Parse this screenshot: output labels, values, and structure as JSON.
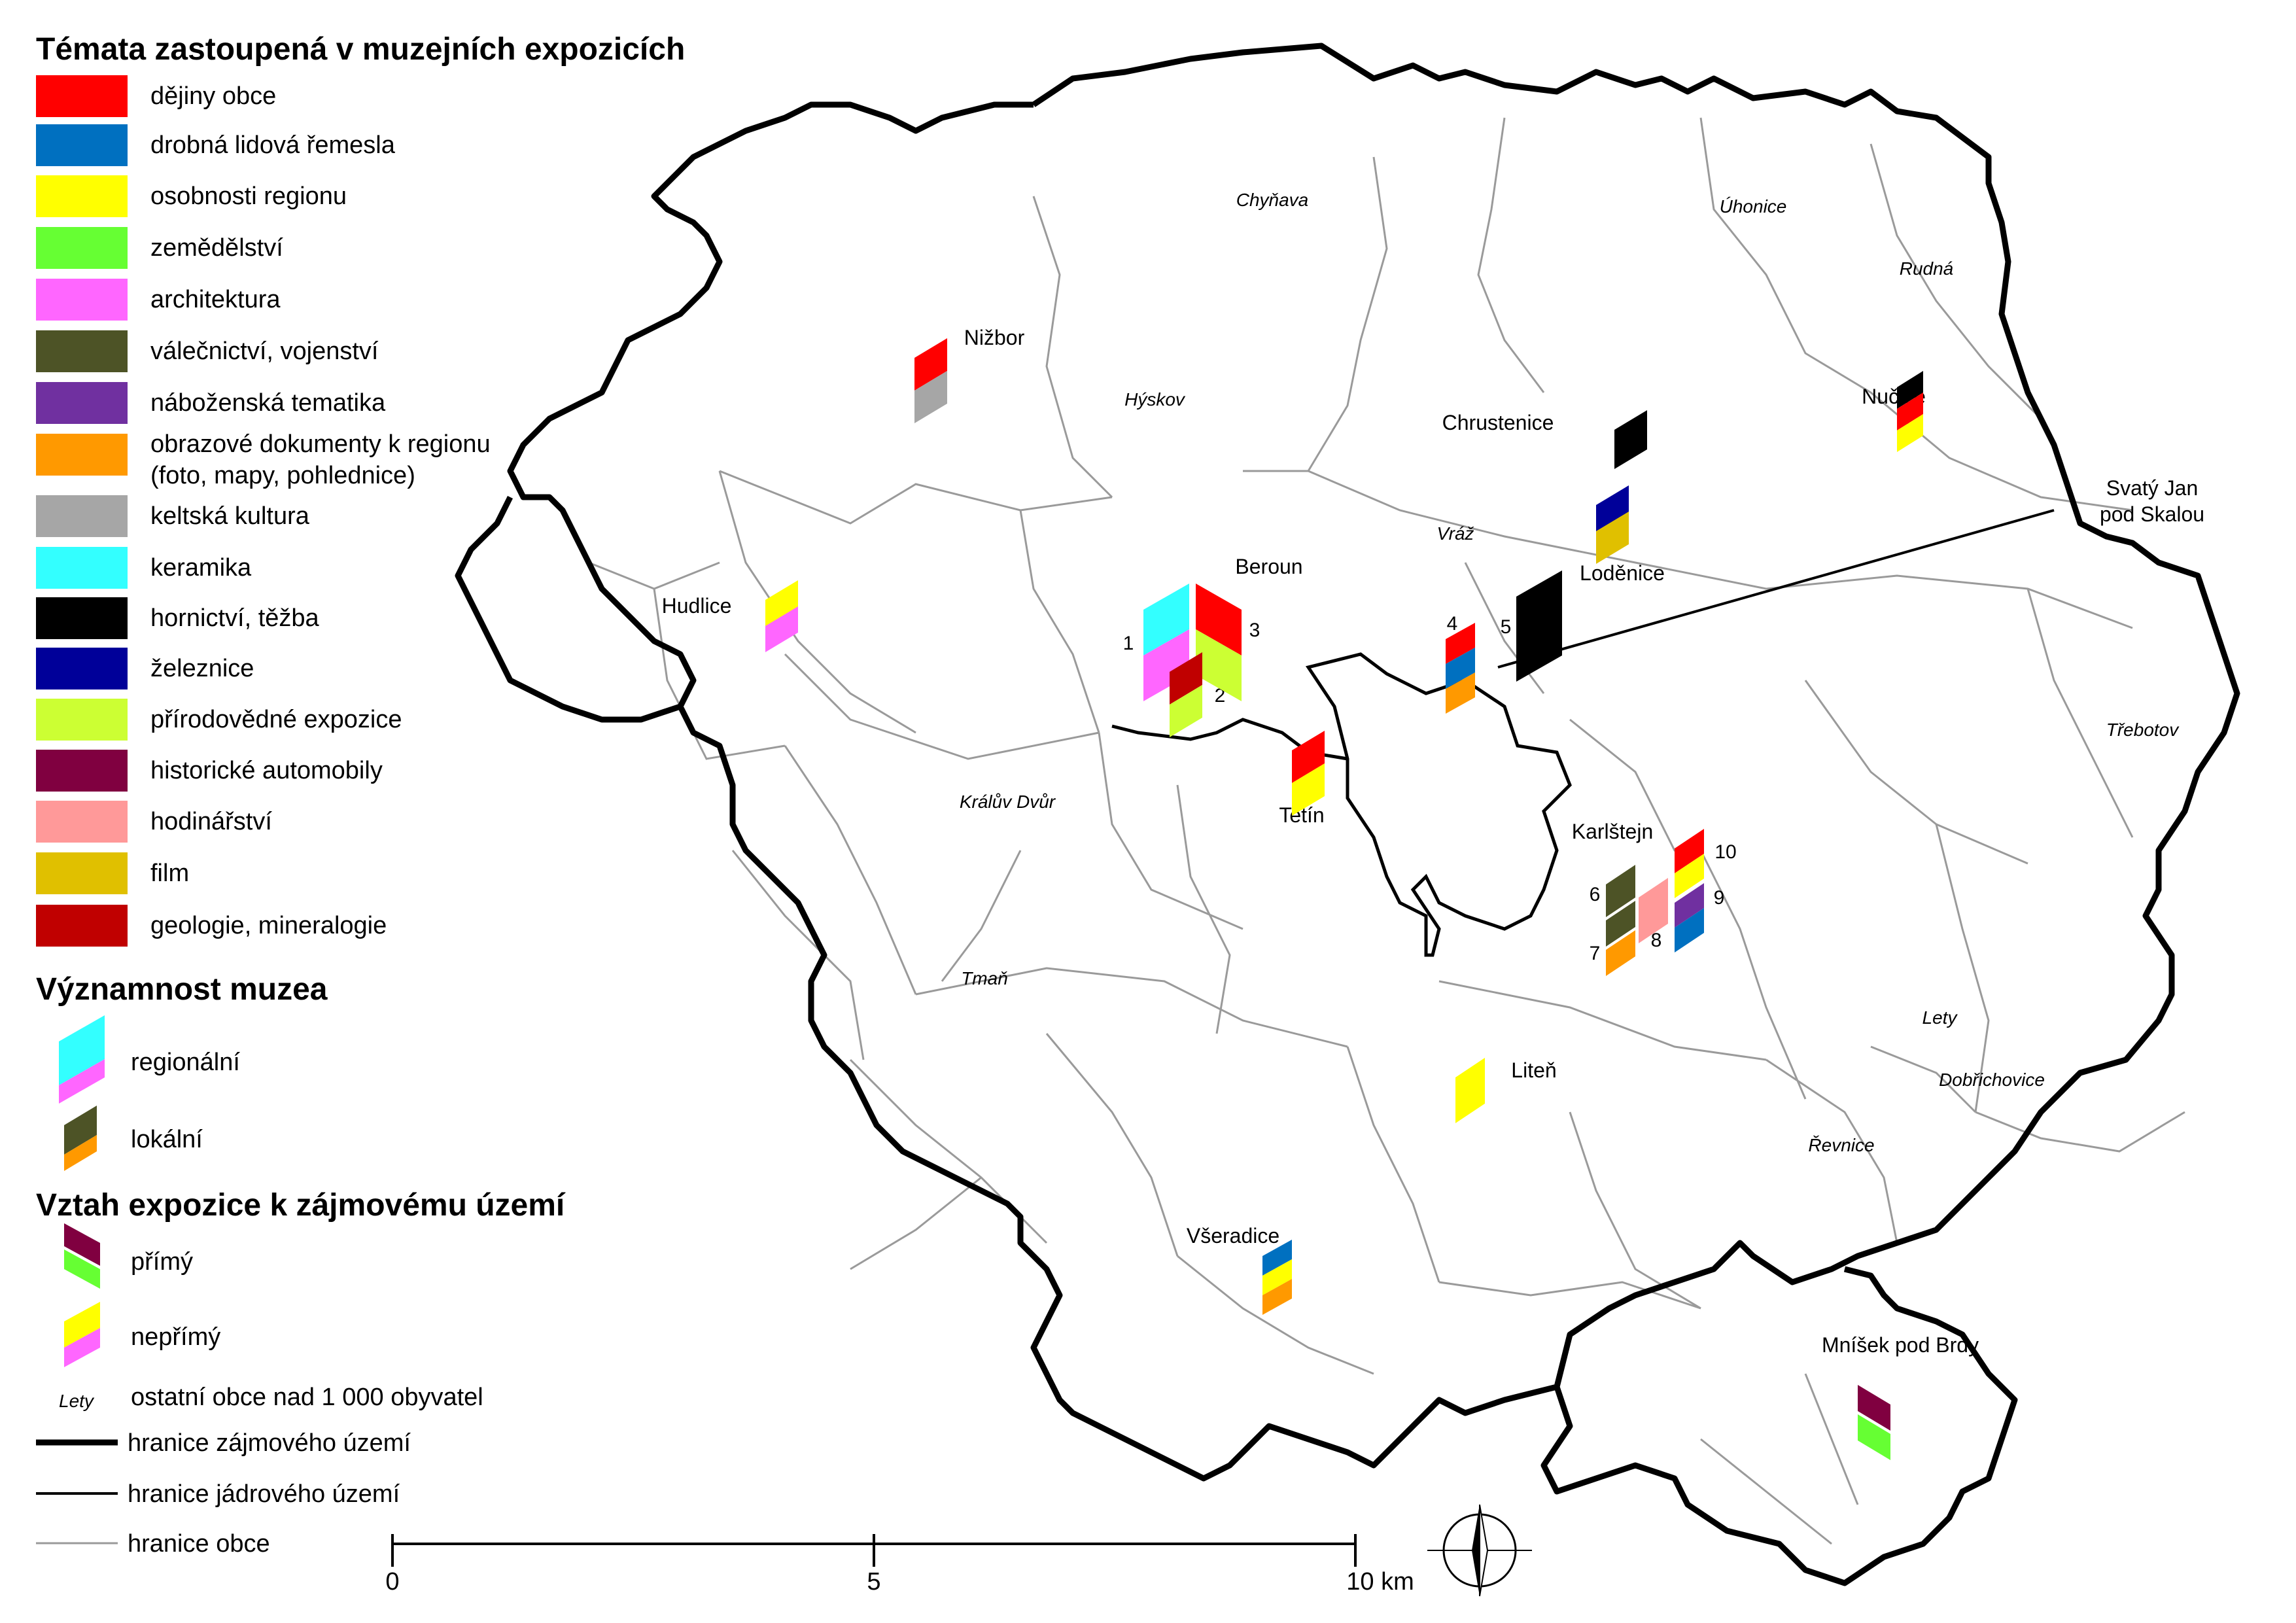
{
  "legend": {
    "themes_title": "Témata zastoupená v muzejních expozicích",
    "themes": [
      {
        "label": "dějiny obce",
        "color": "#ff0000"
      },
      {
        "label": "drobná lidová řemesla",
        "color": "#0070c0"
      },
      {
        "label": "osobnosti regionu",
        "color": "#ffff00"
      },
      {
        "label": "zemědělství",
        "color": "#66ff33"
      },
      {
        "label": "architektura",
        "color": "#ff66ff"
      },
      {
        "label": "válečnictví, vojenství",
        "color": "#4d5326"
      },
      {
        "label": "náboženská tematika",
        "color": "#7030a0"
      },
      {
        "label": "obrazové dokumenty k regionu",
        "label2": "(foto, mapy, pohlednice)",
        "color": "#ff9900"
      },
      {
        "label": "keltská kultura",
        "color": "#a6a6a6"
      },
      {
        "label": "keramika",
        "color": "#33ffff"
      },
      {
        "label": "hornictví, těžba",
        "color": "#000000"
      },
      {
        "label": "železnice",
        "color": "#000099"
      },
      {
        "label": "přírodovědné expozice",
        "color": "#ccff33"
      },
      {
        "label": "historické automobily",
        "color": "#800040"
      },
      {
        "label": "hodinářství",
        "color": "#ff9999"
      },
      {
        "label": "film",
        "color": "#e0c000"
      },
      {
        "label": "geologie, mineralogie",
        "color": "#c00000"
      }
    ],
    "significance_title": "Významnost muzea",
    "significance": [
      {
        "label": "regionální",
        "type": "regional"
      },
      {
        "label": "lokální",
        "type": "local"
      }
    ],
    "relation_title": "Vztah expozice k zájmovému území",
    "relation": [
      {
        "label": "přímý",
        "type": "direct"
      },
      {
        "label": "nepřímý",
        "type": "indirect"
      }
    ],
    "other_towns_sample": "Lety",
    "other_towns_label": "ostatní obce nad 1 000 obyvatel",
    "lines": [
      {
        "label": "hranice zájmového území",
        "type": "thick"
      },
      {
        "label": "hranice jádrového území",
        "type": "medium"
      },
      {
        "label": "hranice obce",
        "type": "thin"
      }
    ]
  },
  "scale": {
    "labels": [
      "0",
      "5",
      "10 km"
    ]
  },
  "map": {
    "towns_italic": [
      "Chyňava",
      "Úhonice",
      "Rudná",
      "Hýskov",
      "Vráž",
      "Třebotov",
      "Králův Dvůr",
      "Tmaň",
      "Lety",
      "Dobřichovice",
      "Řevnice"
    ],
    "towns": [
      "Nižbor",
      "Nučice",
      "Chrustenice",
      "Svatý Jan",
      "pod Skalou",
      "Beroun",
      "Loděnice",
      "Hudlice",
      "Tetín",
      "Karlštejn",
      "Liteň",
      "Všeradice",
      "Mníšek pod Brdy"
    ],
    "numbers": [
      "1",
      "2",
      "3",
      "4",
      "5",
      "6",
      "7",
      "8",
      "9",
      "10"
    ]
  }
}
